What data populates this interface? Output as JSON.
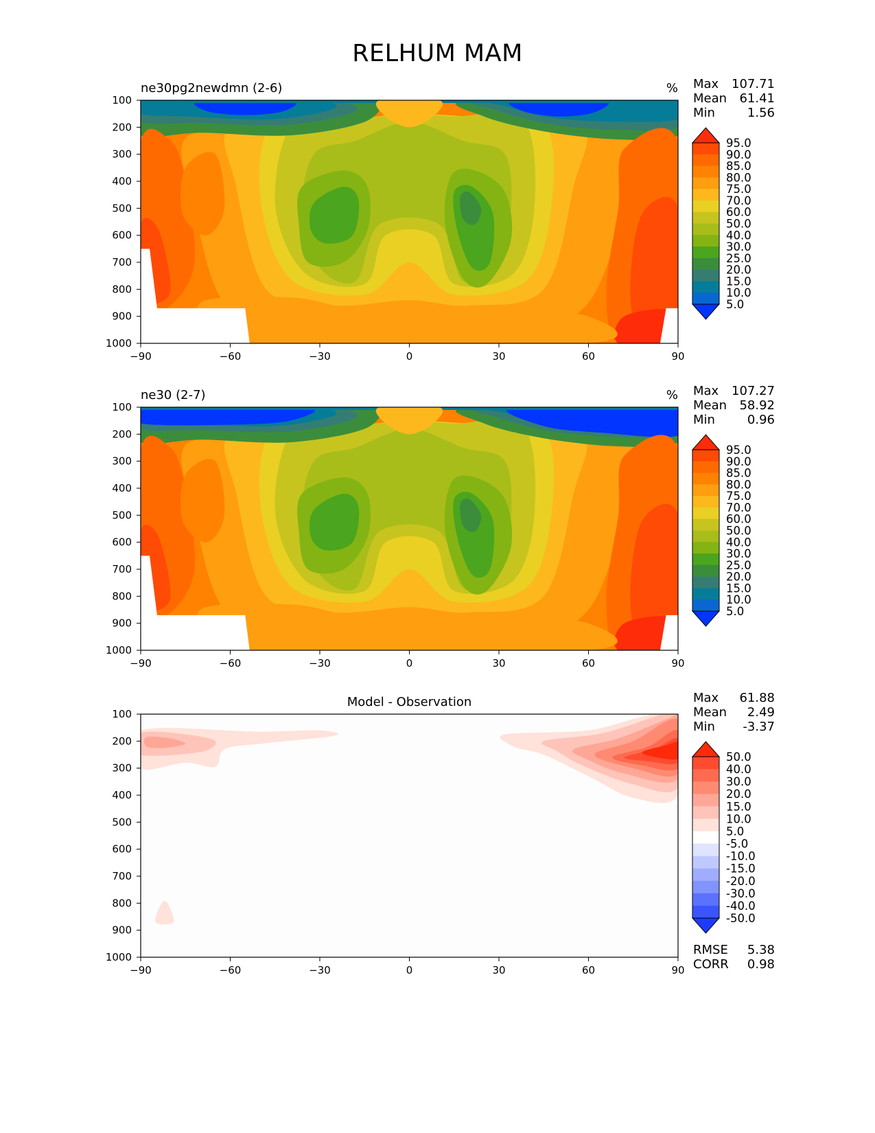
{
  "title": "RELHUM MAM",
  "chart_data": [
    {
      "type": "contour",
      "title": "ne30pg2newdmn (2-6)",
      "units": "%",
      "stats": {
        "max": "107.71",
        "mean": "61.41",
        "min": "1.56"
      },
      "x_ticks": [
        "−90",
        "−60",
        "−30",
        "0",
        "30",
        "60",
        "90"
      ],
      "y_ticks": [
        "100",
        "200",
        "300",
        "400",
        "500",
        "600",
        "700",
        "800",
        "900",
        "1000"
      ],
      "xlim": [
        -90,
        90
      ],
      "ylim": [
        1000,
        100
      ],
      "colorbar": {
        "levels": [
          "95.0",
          "90.0",
          "85.0",
          "80.0",
          "75.0",
          "70.0",
          "60.0",
          "50.0",
          "40.0",
          "30.0",
          "25.0",
          "20.0",
          "15.0",
          "10.0",
          "5.0"
        ],
        "colors": [
          "#ff2c0a",
          "#ff4b05",
          "#ff6a00",
          "#ff8200",
          "#ff9e0f",
          "#fdb81d",
          "#ead023",
          "#c7c41f",
          "#a8bd19",
          "#83b413",
          "#4ba51e",
          "#3b8d3c",
          "#357d73",
          "#067d98",
          "#0867d1",
          "#0235ff"
        ]
      },
      "regions": [
        {
          "range": "5-15",
          "lat": [
            -70,
            -50
          ],
          "p": [
            100,
            180
          ],
          "label": "upper-troposphere SH dry"
        },
        {
          "range": "5-15",
          "lat": [
            35,
            60
          ],
          "p": [
            100,
            180
          ],
          "label": "upper-troposphere NH dry"
        },
        {
          "range": "25-30",
          "lat": [
            -30,
            -15
          ],
          "p": [
            420,
            600
          ],
          "label": "SH subtropical minimum"
        },
        {
          "range": "25-30",
          "lat": [
            15,
            25
          ],
          "p": [
            440,
            700
          ],
          "label": "NH subtropical minimum"
        },
        {
          "range": "95+",
          "lat": [
            70,
            88
          ],
          "p": [
            850,
            1000
          ],
          "label": "Arctic surface maximum"
        }
      ]
    },
    {
      "type": "contour",
      "title": "ne30 (2-7)",
      "units": "%",
      "stats": {
        "max": "107.27",
        "mean": "58.92",
        "min": "0.96"
      },
      "x_ticks": [
        "−90",
        "−60",
        "−30",
        "0",
        "30",
        "60",
        "90"
      ],
      "y_ticks": [
        "100",
        "200",
        "300",
        "400",
        "500",
        "600",
        "700",
        "800",
        "900",
        "1000"
      ],
      "xlim": [
        -90,
        90
      ],
      "ylim": [
        1000,
        100
      ],
      "colorbar": {
        "levels": [
          "95.0",
          "90.0",
          "85.0",
          "80.0",
          "75.0",
          "70.0",
          "60.0",
          "50.0",
          "40.0",
          "30.0",
          "25.0",
          "20.0",
          "15.0",
          "10.0",
          "5.0"
        ],
        "colors": [
          "#ff2c0a",
          "#ff4b05",
          "#ff6a00",
          "#ff8200",
          "#ff9e0f",
          "#fdb81d",
          "#ead023",
          "#c7c41f",
          "#a8bd19",
          "#83b413",
          "#4ba51e",
          "#3b8d3c",
          "#357d73",
          "#067d98",
          "#0867d1",
          "#0235ff"
        ]
      },
      "regions": [
        {
          "range": "<5",
          "lat": [
            -90,
            -40
          ],
          "p": [
            100,
            160
          ],
          "label": "upper-troposphere SH dry"
        },
        {
          "range": "<5",
          "lat": [
            35,
            90
          ],
          "p": [
            100,
            200
          ],
          "label": "upper-troposphere NH dry"
        },
        {
          "range": "25-30",
          "lat": [
            -30,
            -15
          ],
          "p": [
            420,
            600
          ],
          "label": "SH subtropical minimum"
        },
        {
          "range": "25-30",
          "lat": [
            15,
            25
          ],
          "p": [
            440,
            700
          ],
          "label": "NH subtropical minimum"
        },
        {
          "range": "95+",
          "lat": [
            70,
            85
          ],
          "p": [
            870,
            1000
          ],
          "label": "Arctic surface maximum"
        }
      ]
    },
    {
      "type": "contour",
      "title": "Model - Observation",
      "units": "",
      "stats": {
        "max": "61.88",
        "mean": "2.49",
        "min": "-3.37"
      },
      "metrics": {
        "rmse": "5.38",
        "corr": "0.98"
      },
      "x_ticks": [
        "−90",
        "−60",
        "−30",
        "0",
        "30",
        "60",
        "90"
      ],
      "y_ticks": [
        "100",
        "200",
        "300",
        "400",
        "500",
        "600",
        "700",
        "800",
        "900",
        "1000"
      ],
      "xlim": [
        -90,
        90
      ],
      "ylim": [
        1000,
        100
      ],
      "colorbar": {
        "levels": [
          "50.0",
          "40.0",
          "30.0",
          "20.0",
          "15.0",
          "10.0",
          "5.0",
          "-5.0",
          "-10.0",
          "-15.0",
          "-20.0",
          "-30.0",
          "-40.0",
          "-50.0"
        ],
        "colors": [
          "#ff2a0a",
          "#ff4c30",
          "#ff6b50",
          "#ff8a72",
          "#ffa796",
          "#ffc4b9",
          "#ffe2da",
          "#ffffff",
          "#dfe4ff",
          "#bfc9ff",
          "#a0adff",
          "#8093ff",
          "#5b72ff",
          "#3a55ff",
          "#1d3bff"
        ]
      },
      "regions": [
        {
          "range": "30-50+",
          "lat": [
            60,
            90
          ],
          "p": [
            150,
            300
          ],
          "label": "Arctic upper-troposphere moist bias"
        },
        {
          "range": "10-20",
          "lat": [
            -90,
            -65
          ],
          "p": [
            170,
            260
          ],
          "label": "Antarctic upper-troposphere moist bias"
        }
      ]
    }
  ],
  "labels": {
    "max": "Max",
    "mean": "Mean",
    "min": "Min",
    "rmse": "RMSE",
    "corr": "CORR"
  }
}
